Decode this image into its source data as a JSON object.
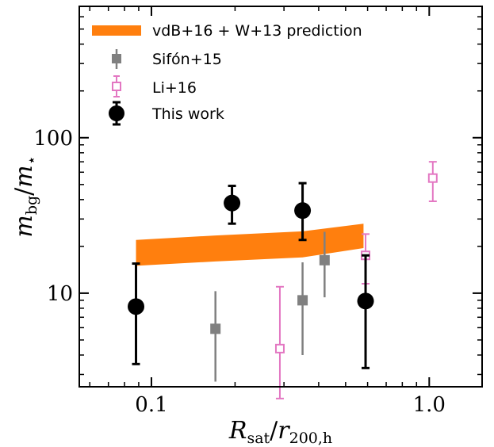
{
  "chart_data": {
    "type": "scatter",
    "xscale": "log",
    "yscale": "log",
    "xlim": [
      0.055,
      1.55
    ],
    "ylim": [
      2.5,
      700
    ],
    "xlabel": "R_sat/r_200,h",
    "ylabel": "m_bg/m_*",
    "xticks": [
      {
        "value": 0.1,
        "label": "0.1"
      },
      {
        "value": 1.0,
        "label": "1.0"
      }
    ],
    "yticks": [
      {
        "value": 10,
        "label": "10"
      },
      {
        "value": 100,
        "label": "100"
      }
    ],
    "legend_position": "top-left",
    "colors": {
      "band": "#ff7f0e",
      "sifon": "#808080",
      "li": "#e377c2",
      "this_work": "#000000"
    },
    "band": {
      "name": "vdB+16 + W+13 prediction",
      "x": [
        0.088,
        0.17,
        0.35,
        0.58
      ],
      "lower": [
        15,
        16,
        17,
        19.5
      ],
      "upper": [
        22,
        23.5,
        25,
        28
      ]
    },
    "series": [
      {
        "name": "Sifón+15",
        "marker": "square-filled",
        "points": [
          {
            "x": 0.17,
            "y": 5.9,
            "ylo": 2.7,
            "yhi": 10.3
          },
          {
            "x": 0.35,
            "y": 9.0,
            "ylo": 4.0,
            "yhi": 15.8
          },
          {
            "x": 0.42,
            "y": 16.3,
            "ylo": 9.4,
            "yhi": 24.8
          }
        ]
      },
      {
        "name": "Li+16",
        "marker": "square-open",
        "points": [
          {
            "x": 0.29,
            "y": 4.4,
            "ylo": 2.1,
            "yhi": 11.0
          },
          {
            "x": 0.59,
            "y": 17.5,
            "ylo": 11.5,
            "yhi": 24.0
          },
          {
            "x": 1.03,
            "y": 55,
            "ylo": 39,
            "yhi": 70
          }
        ]
      },
      {
        "name": "This work",
        "marker": "circle-filled",
        "points": [
          {
            "x": 0.088,
            "y": 8.2,
            "ylo": 3.5,
            "yhi": 15.5
          },
          {
            "x": 0.195,
            "y": 38,
            "ylo": 28,
            "yhi": 49
          },
          {
            "x": 0.35,
            "y": 34,
            "ylo": 22,
            "yhi": 51
          },
          {
            "x": 0.59,
            "y": 8.9,
            "ylo": 3.3,
            "yhi": 17.5
          }
        ]
      }
    ]
  }
}
